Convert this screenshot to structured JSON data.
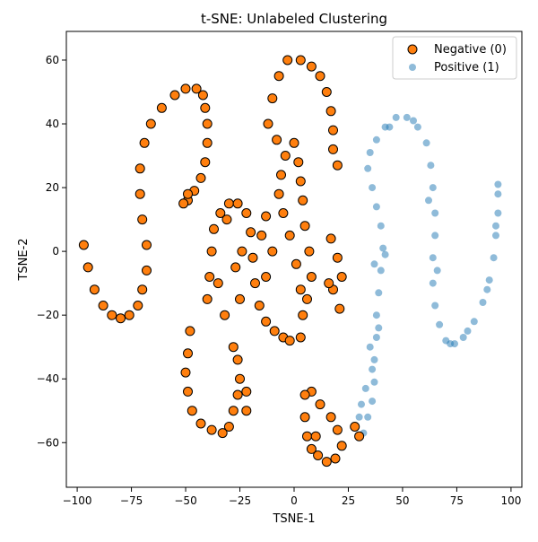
{
  "chart_data": {
    "type": "scatter",
    "title": "t-SNE: Unlabeled Clustering",
    "xlabel": "TSNE-1",
    "ylabel": "TSNE-2",
    "xlim": [
      -105,
      105
    ],
    "ylim": [
      -74,
      69
    ],
    "xticks": [
      -100,
      -75,
      -50,
      -25,
      0,
      25,
      50,
      75,
      100
    ],
    "yticks": [
      -60,
      -40,
      -20,
      0,
      20,
      40,
      60
    ],
    "grid": false,
    "legend": {
      "position": "top-right"
    },
    "series": [
      {
        "name": "Negative (0)",
        "color": "#ff7f0e",
        "edge_color": "#000000",
        "marker": "circle",
        "points": [
          [
            -97,
            2
          ],
          [
            -95,
            -5
          ],
          [
            -92,
            -12
          ],
          [
            -88,
            -17
          ],
          [
            -84,
            -20
          ],
          [
            -80,
            -21
          ],
          [
            -76,
            -20
          ],
          [
            -72,
            -17
          ],
          [
            -70,
            -12
          ],
          [
            -68,
            -6
          ],
          [
            -68,
            2
          ],
          [
            -70,
            10
          ],
          [
            -71,
            18
          ],
          [
            -71,
            26
          ],
          [
            -69,
            34
          ],
          [
            -66,
            40
          ],
          [
            -61,
            45
          ],
          [
            -55,
            49
          ],
          [
            -50,
            51
          ],
          [
            -45,
            51
          ],
          [
            -42,
            49
          ],
          [
            -41,
            45
          ],
          [
            -40,
            40
          ],
          [
            -40,
            34
          ],
          [
            -41,
            28
          ],
          [
            -43,
            23
          ],
          [
            -46,
            19
          ],
          [
            -49,
            16
          ],
          [
            -51,
            15
          ],
          [
            -49,
            18
          ],
          [
            -48,
            -25
          ],
          [
            -49,
            -32
          ],
          [
            -50,
            -38
          ],
          [
            -49,
            -44
          ],
          [
            -47,
            -50
          ],
          [
            -43,
            -54
          ],
          [
            -38,
            -56
          ],
          [
            -33,
            -57
          ],
          [
            -30,
            -55
          ],
          [
            -28,
            -50
          ],
          [
            -26,
            -45
          ],
          [
            -25,
            -40
          ],
          [
            -26,
            -34
          ],
          [
            -28,
            -30
          ],
          [
            -22,
            -44
          ],
          [
            -22,
            -50
          ],
          [
            -40,
            -15
          ],
          [
            -39,
            -8
          ],
          [
            -38,
            0
          ],
          [
            -37,
            7
          ],
          [
            -34,
            12
          ],
          [
            -30,
            15
          ],
          [
            -26,
            15
          ],
          [
            -22,
            12
          ],
          [
            -20,
            6
          ],
          [
            -19,
            -2
          ],
          [
            -18,
            -10
          ],
          [
            -16,
            -17
          ],
          [
            -13,
            -22
          ],
          [
            -9,
            -25
          ],
          [
            -5,
            -27
          ],
          [
            -2,
            -28
          ],
          [
            3,
            -27
          ],
          [
            4,
            -20
          ],
          [
            3,
            -12
          ],
          [
            1,
            -4
          ],
          [
            -2,
            5
          ],
          [
            -5,
            12
          ],
          [
            -7,
            18
          ],
          [
            -6,
            24
          ],
          [
            -4,
            30
          ],
          [
            -8,
            35
          ],
          [
            -12,
            40
          ],
          [
            -10,
            48
          ],
          [
            -7,
            55
          ],
          [
            -3,
            60
          ],
          [
            3,
            60
          ],
          [
            8,
            58
          ],
          [
            12,
            55
          ],
          [
            15,
            50
          ],
          [
            17,
            44
          ],
          [
            18,
            38
          ],
          [
            18,
            32
          ],
          [
            20,
            27
          ],
          [
            6,
            -15
          ],
          [
            8,
            -8
          ],
          [
            7,
            0
          ],
          [
            5,
            8
          ],
          [
            4,
            16
          ],
          [
            3,
            22
          ],
          [
            2,
            28
          ],
          [
            0,
            34
          ],
          [
            -31,
            10
          ],
          [
            -27,
            -5
          ],
          [
            -25,
            -15
          ],
          [
            -32,
            -20
          ],
          [
            -35,
            -10
          ],
          [
            -24,
            0
          ],
          [
            -13,
            -8
          ],
          [
            -15,
            5
          ],
          [
            -13,
            11
          ],
          [
            -10,
            0
          ],
          [
            17,
            4
          ],
          [
            20,
            -2
          ],
          [
            22,
            -8
          ],
          [
            18,
            -12
          ],
          [
            21,
            -18
          ],
          [
            16,
            -10
          ],
          [
            5,
            -52
          ],
          [
            6,
            -58
          ],
          [
            8,
            -62
          ],
          [
            11,
            -64
          ],
          [
            15,
            -66
          ],
          [
            19,
            -65
          ],
          [
            22,
            -61
          ],
          [
            20,
            -56
          ],
          [
            17,
            -52
          ],
          [
            12,
            -48
          ],
          [
            8,
            -44
          ],
          [
            5,
            -45
          ],
          [
            10,
            -58
          ],
          [
            28,
            -55
          ],
          [
            30,
            -58
          ]
        ]
      },
      {
        "name": "Positive (1)",
        "color": "#1f77b4",
        "marker": "circle",
        "points": [
          [
            32,
            -57
          ],
          [
            34,
            -52
          ],
          [
            36,
            -47
          ],
          [
            37,
            -41
          ],
          [
            37,
            -34
          ],
          [
            38,
            -27
          ],
          [
            38,
            -20
          ],
          [
            39,
            -13
          ],
          [
            40,
            -6
          ],
          [
            41,
            1
          ],
          [
            40,
            8
          ],
          [
            38,
            14
          ],
          [
            36,
            20
          ],
          [
            34,
            26
          ],
          [
            35,
            31
          ],
          [
            38,
            35
          ],
          [
            42,
            39
          ],
          [
            47,
            42
          ],
          [
            52,
            42
          ],
          [
            57,
            39
          ],
          [
            61,
            34
          ],
          [
            63,
            27
          ],
          [
            64,
            20
          ],
          [
            65,
            12
          ],
          [
            65,
            5
          ],
          [
            64,
            -2
          ],
          [
            64,
            -10
          ],
          [
            65,
            -17
          ],
          [
            67,
            -23
          ],
          [
            70,
            -28
          ],
          [
            74,
            -29
          ],
          [
            78,
            -27
          ],
          [
            83,
            -22
          ],
          [
            87,
            -16
          ],
          [
            90,
            -9
          ],
          [
            92,
            -2
          ],
          [
            93,
            5
          ],
          [
            94,
            12
          ],
          [
            94,
            18
          ],
          [
            94,
            21
          ],
          [
            35,
            -30
          ],
          [
            36,
            -37
          ],
          [
            33,
            -43
          ],
          [
            30,
            -52
          ],
          [
            31,
            -48
          ],
          [
            39,
            -24
          ],
          [
            37,
            -4
          ],
          [
            42,
            -1
          ],
          [
            44,
            39
          ],
          [
            55,
            41
          ],
          [
            62,
            16
          ],
          [
            66,
            -6
          ],
          [
            72,
            -29
          ],
          [
            80,
            -25
          ],
          [
            89,
            -12
          ],
          [
            93,
            8
          ]
        ]
      }
    ]
  }
}
